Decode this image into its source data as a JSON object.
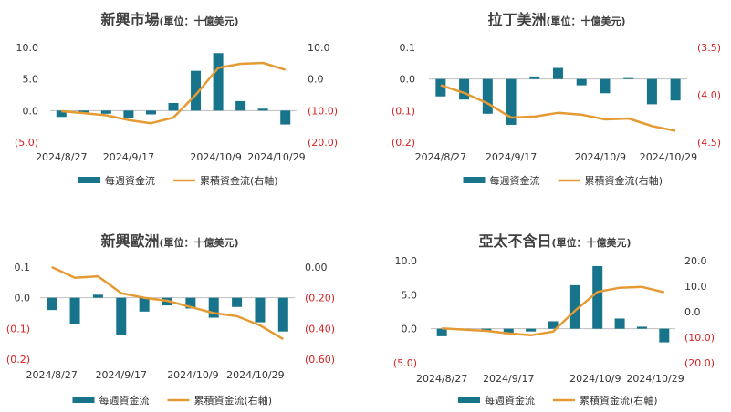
{
  "colors": {
    "bar": "#17748a",
    "line": "#e59a33",
    "neg_label": "#d92020",
    "axis_text": "#333333",
    "zero_line": "#bfbfbf"
  },
  "legend": {
    "bar_label": "每週資金流",
    "line_label": "累積資金流(右軸)"
  },
  "chart_data": [
    {
      "type": "bar+line",
      "title_main": "新興市場",
      "title_unit": "(單位：十億美元)",
      "x_tick_labels": [
        "2024/8/27",
        "2024/9/17",
        "2024/10/9",
        "2024/10/29"
      ],
      "left_ticks": [
        "10.0",
        "5.0",
        "0.0",
        "(5.0)"
      ],
      "right_ticks": [
        "10.0",
        "0.0",
        "(10.0)",
        "(20.0)"
      ],
      "ylim_left": [
        -5,
        10
      ],
      "ylim_right": [
        -20,
        10
      ],
      "weekly": [
        -1.0,
        -0.3,
        -0.5,
        -1.2,
        -0.6,
        1.2,
        6.3,
        9.1,
        1.5,
        0.3,
        -2.2
      ],
      "cumulative": [
        -10.2,
        -10.8,
        -11.5,
        -13.0,
        -14.0,
        -12.2,
        -5.0,
        3.5,
        4.8,
        5.1,
        2.9
      ]
    },
    {
      "type": "bar+line",
      "title_main": "拉丁美洲",
      "title_unit": "(單位：十億美元)",
      "x_tick_labels": [
        "2024/8/27",
        "2024/9/17",
        "2024/10/9",
        "2024/10/29"
      ],
      "left_ticks": [
        "0.1",
        "0.0",
        "(0.1)",
        "(0.2)"
      ],
      "right_ticks": [
        "(3.5)",
        "(4.0)",
        "(4.5)"
      ],
      "ylim_left": [
        -0.2,
        0.1
      ],
      "ylim_right": [
        -4.5,
        -3.5
      ],
      "weekly": [
        -0.055,
        -0.065,
        -0.11,
        -0.145,
        0.008,
        0.035,
        -0.02,
        -0.045,
        0.003,
        -0.08,
        -0.068
      ],
      "cumulative": [
        -3.9,
        -3.98,
        -4.09,
        -4.24,
        -4.23,
        -4.19,
        -4.21,
        -4.26,
        -4.25,
        -4.33,
        -4.38
      ]
    },
    {
      "type": "bar+line",
      "title_main": "新興歐洲",
      "title_unit": "(單位：十億美元)",
      "x_tick_labels": [
        "2024/8/27",
        "2024/9/17",
        "2024/10/9",
        "2024/10/29"
      ],
      "left_ticks": [
        "0.1",
        "0.0",
        "(0.1)",
        "(0.2)"
      ],
      "right_ticks": [
        "0.00",
        "(0.20)",
        "(0.40)",
        "(0.60)"
      ],
      "ylim_left": [
        -0.2,
        0.1
      ],
      "ylim_right": [
        -0.6,
        0.0
      ],
      "weekly": [
        -0.04,
        -0.085,
        0.01,
        -0.12,
        -0.045,
        -0.025,
        -0.035,
        -0.065,
        -0.03,
        -0.08,
        -0.11
      ],
      "cumulative": [
        0.0,
        -0.07,
        -0.06,
        -0.17,
        -0.2,
        -0.22,
        -0.26,
        -0.3,
        -0.32,
        -0.38,
        -0.47
      ]
    },
    {
      "type": "bar+line",
      "title_main": "亞太不含日",
      "title_unit": "(單位：十億美元)",
      "x_tick_labels": [
        "2024/8/27",
        "2024/9/17",
        "2024/10/9",
        "2024/10/29"
      ],
      "left_ticks": [
        "10.0",
        "5.0",
        "0.0",
        "(5.0)"
      ],
      "right_ticks": [
        "20.0",
        "10.0",
        "0.0",
        "(10.0)",
        "(20.0)"
      ],
      "ylim_left": [
        -5,
        10
      ],
      "ylim_right": [
        -20,
        20
      ],
      "weekly": [
        -1.1,
        -0.2,
        -0.3,
        -0.8,
        -0.4,
        1.1,
        6.4,
        9.2,
        1.5,
        0.3,
        -2.0
      ],
      "cumulative": [
        -6.5,
        -7.0,
        -7.5,
        -8.5,
        -9.2,
        -7.8,
        0.5,
        7.8,
        9.4,
        9.7,
        7.6
      ]
    }
  ]
}
